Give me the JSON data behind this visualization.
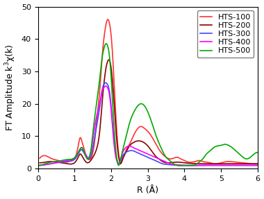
{
  "xlabel": "R (Å)",
  "ylabel": "FT Amplitude k$^3$χ(k)",
  "xlim": [
    0,
    6
  ],
  "ylim": [
    0,
    50
  ],
  "xticks": [
    0,
    1,
    2,
    3,
    4,
    5,
    6
  ],
  "yticks": [
    0,
    10,
    20,
    30,
    40,
    50
  ],
  "series": [
    {
      "label": "HTS-100",
      "color": "#FF3333",
      "points": [
        [
          0.05,
          3.2
        ],
        [
          0.15,
          4.0
        ],
        [
          0.25,
          3.8
        ],
        [
          0.35,
          3.2
        ],
        [
          0.45,
          2.8
        ],
        [
          0.55,
          2.5
        ],
        [
          0.65,
          2.2
        ],
        [
          0.75,
          2.0
        ],
        [
          0.85,
          2.2
        ],
        [
          0.95,
          2.8
        ],
        [
          1.05,
          4.5
        ],
        [
          1.1,
          7.0
        ],
        [
          1.15,
          9.5
        ],
        [
          1.2,
          8.5
        ],
        [
          1.25,
          6.5
        ],
        [
          1.3,
          4.5
        ],
        [
          1.35,
          3.2
        ],
        [
          1.4,
          2.8
        ],
        [
          1.45,
          3.2
        ],
        [
          1.5,
          5.0
        ],
        [
          1.55,
          8.5
        ],
        [
          1.6,
          14.0
        ],
        [
          1.7,
          26.0
        ],
        [
          1.75,
          34.0
        ],
        [
          1.8,
          40.0
        ],
        [
          1.85,
          44.0
        ],
        [
          1.9,
          46.0
        ],
        [
          1.95,
          45.0
        ],
        [
          2.0,
          41.0
        ],
        [
          2.05,
          33.0
        ],
        [
          2.1,
          22.0
        ],
        [
          2.15,
          12.0
        ],
        [
          2.2,
          5.0
        ],
        [
          2.25,
          2.0
        ],
        [
          2.3,
          2.5
        ],
        [
          2.4,
          5.5
        ],
        [
          2.5,
          7.5
        ],
        [
          2.6,
          10.0
        ],
        [
          2.7,
          12.0
        ],
        [
          2.8,
          13.0
        ],
        [
          2.9,
          12.5
        ],
        [
          3.0,
          11.5
        ],
        [
          3.1,
          10.0
        ],
        [
          3.2,
          8.0
        ],
        [
          3.3,
          6.0
        ],
        [
          3.4,
          4.5
        ],
        [
          3.5,
          3.5
        ],
        [
          3.6,
          3.0
        ],
        [
          3.7,
          3.2
        ],
        [
          3.8,
          3.5
        ],
        [
          3.9,
          3.0
        ],
        [
          4.0,
          2.5
        ],
        [
          4.1,
          2.0
        ],
        [
          4.2,
          2.0
        ],
        [
          4.3,
          2.2
        ],
        [
          4.4,
          2.5
        ],
        [
          4.5,
          2.2
        ],
        [
          4.6,
          2.0
        ],
        [
          4.7,
          1.8
        ],
        [
          4.8,
          1.5
        ],
        [
          5.0,
          1.8
        ],
        [
          5.2,
          2.2
        ],
        [
          5.4,
          2.0
        ],
        [
          5.6,
          1.8
        ],
        [
          5.8,
          1.5
        ],
        [
          6.0,
          1.5
        ]
      ]
    },
    {
      "label": "HTS-200",
      "color": "#8B0000",
      "points": [
        [
          0.05,
          1.8
        ],
        [
          0.2,
          2.0
        ],
        [
          0.35,
          2.2
        ],
        [
          0.5,
          2.0
        ],
        [
          0.65,
          1.8
        ],
        [
          0.8,
          1.5
        ],
        [
          0.95,
          1.5
        ],
        [
          1.0,
          1.8
        ],
        [
          1.05,
          2.5
        ],
        [
          1.1,
          3.5
        ],
        [
          1.15,
          4.5
        ],
        [
          1.2,
          4.0
        ],
        [
          1.25,
          3.0
        ],
        [
          1.3,
          2.2
        ],
        [
          1.35,
          1.8
        ],
        [
          1.4,
          2.0
        ],
        [
          1.5,
          3.5
        ],
        [
          1.6,
          6.0
        ],
        [
          1.7,
          13.0
        ],
        [
          1.75,
          20.0
        ],
        [
          1.8,
          26.0
        ],
        [
          1.85,
          30.5
        ],
        [
          1.9,
          33.0
        ],
        [
          1.95,
          33.5
        ],
        [
          2.0,
          31.0
        ],
        [
          2.05,
          25.0
        ],
        [
          2.1,
          17.0
        ],
        [
          2.15,
          9.0
        ],
        [
          2.2,
          4.0
        ],
        [
          2.25,
          1.5
        ],
        [
          2.3,
          2.5
        ],
        [
          2.4,
          5.0
        ],
        [
          2.5,
          7.0
        ],
        [
          2.6,
          8.0
        ],
        [
          2.7,
          8.5
        ],
        [
          2.8,
          8.5
        ],
        [
          2.9,
          8.0
        ],
        [
          3.0,
          7.0
        ],
        [
          3.1,
          5.5
        ],
        [
          3.2,
          4.0
        ],
        [
          3.3,
          3.0
        ],
        [
          3.4,
          2.2
        ],
        [
          3.5,
          1.8
        ],
        [
          3.6,
          1.8
        ],
        [
          3.8,
          2.0
        ],
        [
          4.0,
          1.8
        ],
        [
          4.5,
          1.5
        ],
        [
          5.0,
          1.5
        ],
        [
          5.5,
          1.5
        ],
        [
          6.0,
          1.5
        ]
      ]
    },
    {
      "label": "HTS-300",
      "color": "#4444FF",
      "points": [
        [
          0.05,
          1.0
        ],
        [
          0.2,
          1.2
        ],
        [
          0.35,
          1.5
        ],
        [
          0.5,
          1.8
        ],
        [
          0.65,
          2.0
        ],
        [
          0.8,
          2.2
        ],
        [
          0.95,
          2.5
        ],
        [
          1.05,
          3.5
        ],
        [
          1.1,
          4.5
        ],
        [
          1.15,
          5.5
        ],
        [
          1.2,
          5.8
        ],
        [
          1.25,
          5.0
        ],
        [
          1.3,
          4.0
        ],
        [
          1.35,
          3.0
        ],
        [
          1.4,
          3.0
        ],
        [
          1.45,
          4.0
        ],
        [
          1.5,
          6.5
        ],
        [
          1.6,
          13.0
        ],
        [
          1.7,
          20.0
        ],
        [
          1.75,
          24.0
        ],
        [
          1.8,
          26.0
        ],
        [
          1.85,
          26.5
        ],
        [
          1.9,
          26.0
        ],
        [
          1.95,
          24.0
        ],
        [
          2.0,
          19.0
        ],
        [
          2.05,
          12.0
        ],
        [
          2.1,
          6.5
        ],
        [
          2.15,
          3.0
        ],
        [
          2.2,
          1.5
        ],
        [
          2.25,
          2.0
        ],
        [
          2.3,
          3.5
        ],
        [
          2.4,
          5.0
        ],
        [
          2.5,
          5.5
        ],
        [
          2.6,
          5.5
        ],
        [
          2.7,
          5.0
        ],
        [
          2.8,
          4.5
        ],
        [
          2.9,
          4.0
        ],
        [
          3.0,
          3.5
        ],
        [
          3.2,
          2.5
        ],
        [
          3.4,
          1.5
        ],
        [
          3.6,
          1.2
        ],
        [
          3.8,
          1.0
        ],
        [
          4.0,
          1.0
        ],
        [
          4.5,
          1.0
        ],
        [
          5.0,
          1.0
        ],
        [
          5.5,
          1.0
        ],
        [
          6.0,
          1.0
        ]
      ]
    },
    {
      "label": "HTS-400",
      "color": "#FF00FF",
      "points": [
        [
          0.05,
          1.0
        ],
        [
          0.2,
          1.2
        ],
        [
          0.35,
          1.5
        ],
        [
          0.5,
          1.8
        ],
        [
          0.65,
          2.2
        ],
        [
          0.8,
          2.5
        ],
        [
          0.95,
          3.0
        ],
        [
          1.05,
          4.0
        ],
        [
          1.1,
          5.0
        ],
        [
          1.15,
          6.0
        ],
        [
          1.2,
          6.5
        ],
        [
          1.25,
          5.5
        ],
        [
          1.3,
          4.5
        ],
        [
          1.35,
          3.5
        ],
        [
          1.4,
          3.5
        ],
        [
          1.45,
          5.5
        ],
        [
          1.5,
          9.0
        ],
        [
          1.6,
          16.0
        ],
        [
          1.7,
          21.0
        ],
        [
          1.75,
          24.0
        ],
        [
          1.8,
          25.0
        ],
        [
          1.85,
          25.5
        ],
        [
          1.9,
          25.0
        ],
        [
          1.95,
          23.0
        ],
        [
          2.0,
          18.0
        ],
        [
          2.05,
          11.0
        ],
        [
          2.1,
          5.5
        ],
        [
          2.15,
          2.5
        ],
        [
          2.2,
          1.5
        ],
        [
          2.25,
          2.5
        ],
        [
          2.3,
          4.5
        ],
        [
          2.4,
          6.5
        ],
        [
          2.5,
          7.0
        ],
        [
          2.6,
          6.5
        ],
        [
          2.7,
          6.0
        ],
        [
          2.8,
          5.5
        ],
        [
          2.9,
          5.0
        ],
        [
          3.0,
          4.5
        ],
        [
          3.1,
          4.0
        ],
        [
          3.2,
          3.5
        ],
        [
          3.3,
          3.0
        ],
        [
          3.4,
          2.5
        ],
        [
          3.5,
          2.0
        ],
        [
          3.6,
          1.5
        ],
        [
          3.8,
          1.2
        ],
        [
          4.0,
          1.0
        ],
        [
          4.5,
          1.0
        ],
        [
          5.0,
          1.0
        ],
        [
          5.5,
          1.0
        ],
        [
          6.0,
          1.0
        ]
      ]
    },
    {
      "label": "HTS-500",
      "color": "#00AA00",
      "points": [
        [
          0.05,
          1.0
        ],
        [
          0.2,
          1.5
        ],
        [
          0.35,
          2.0
        ],
        [
          0.5,
          2.2
        ],
        [
          0.65,
          2.5
        ],
        [
          0.8,
          2.8
        ],
        [
          0.95,
          3.0
        ],
        [
          1.05,
          4.0
        ],
        [
          1.1,
          5.0
        ],
        [
          1.15,
          6.0
        ],
        [
          1.2,
          6.5
        ],
        [
          1.25,
          5.5
        ],
        [
          1.3,
          4.0
        ],
        [
          1.35,
          3.0
        ],
        [
          1.4,
          3.5
        ],
        [
          1.45,
          6.0
        ],
        [
          1.5,
          11.0
        ],
        [
          1.6,
          20.0
        ],
        [
          1.7,
          29.0
        ],
        [
          1.75,
          34.0
        ],
        [
          1.8,
          37.0
        ],
        [
          1.85,
          38.5
        ],
        [
          1.9,
          38.0
        ],
        [
          1.95,
          35.0
        ],
        [
          2.0,
          28.0
        ],
        [
          2.05,
          18.0
        ],
        [
          2.1,
          9.0
        ],
        [
          2.15,
          3.5
        ],
        [
          2.2,
          1.0
        ],
        [
          2.25,
          2.5
        ],
        [
          2.3,
          5.0
        ],
        [
          2.4,
          9.5
        ],
        [
          2.5,
          14.0
        ],
        [
          2.6,
          17.0
        ],
        [
          2.7,
          19.0
        ],
        [
          2.8,
          20.0
        ],
        [
          2.9,
          19.5
        ],
        [
          3.0,
          17.5
        ],
        [
          3.1,
          14.5
        ],
        [
          3.2,
          11.0
        ],
        [
          3.3,
          8.0
        ],
        [
          3.4,
          5.5
        ],
        [
          3.5,
          3.5
        ],
        [
          3.6,
          2.5
        ],
        [
          3.7,
          1.5
        ],
        [
          3.8,
          1.0
        ],
        [
          4.0,
          1.0
        ],
        [
          4.2,
          1.0
        ],
        [
          4.3,
          1.2
        ],
        [
          4.4,
          2.0
        ],
        [
          4.5,
          3.0
        ],
        [
          4.6,
          4.5
        ],
        [
          4.7,
          5.5
        ],
        [
          4.8,
          6.5
        ],
        [
          4.9,
          7.0
        ],
        [
          5.0,
          7.2
        ],
        [
          5.1,
          7.5
        ],
        [
          5.2,
          7.2
        ],
        [
          5.3,
          6.5
        ],
        [
          5.4,
          5.5
        ],
        [
          5.5,
          4.5
        ],
        [
          5.6,
          3.5
        ],
        [
          5.7,
          3.0
        ],
        [
          5.8,
          3.5
        ],
        [
          5.9,
          4.5
        ],
        [
          6.0,
          5.0
        ]
      ]
    }
  ],
  "legend_loc": "upper right",
  "fontsize_axis": 9,
  "fontsize_tick": 8,
  "fontsize_legend": 8,
  "linewidth": 1.2
}
